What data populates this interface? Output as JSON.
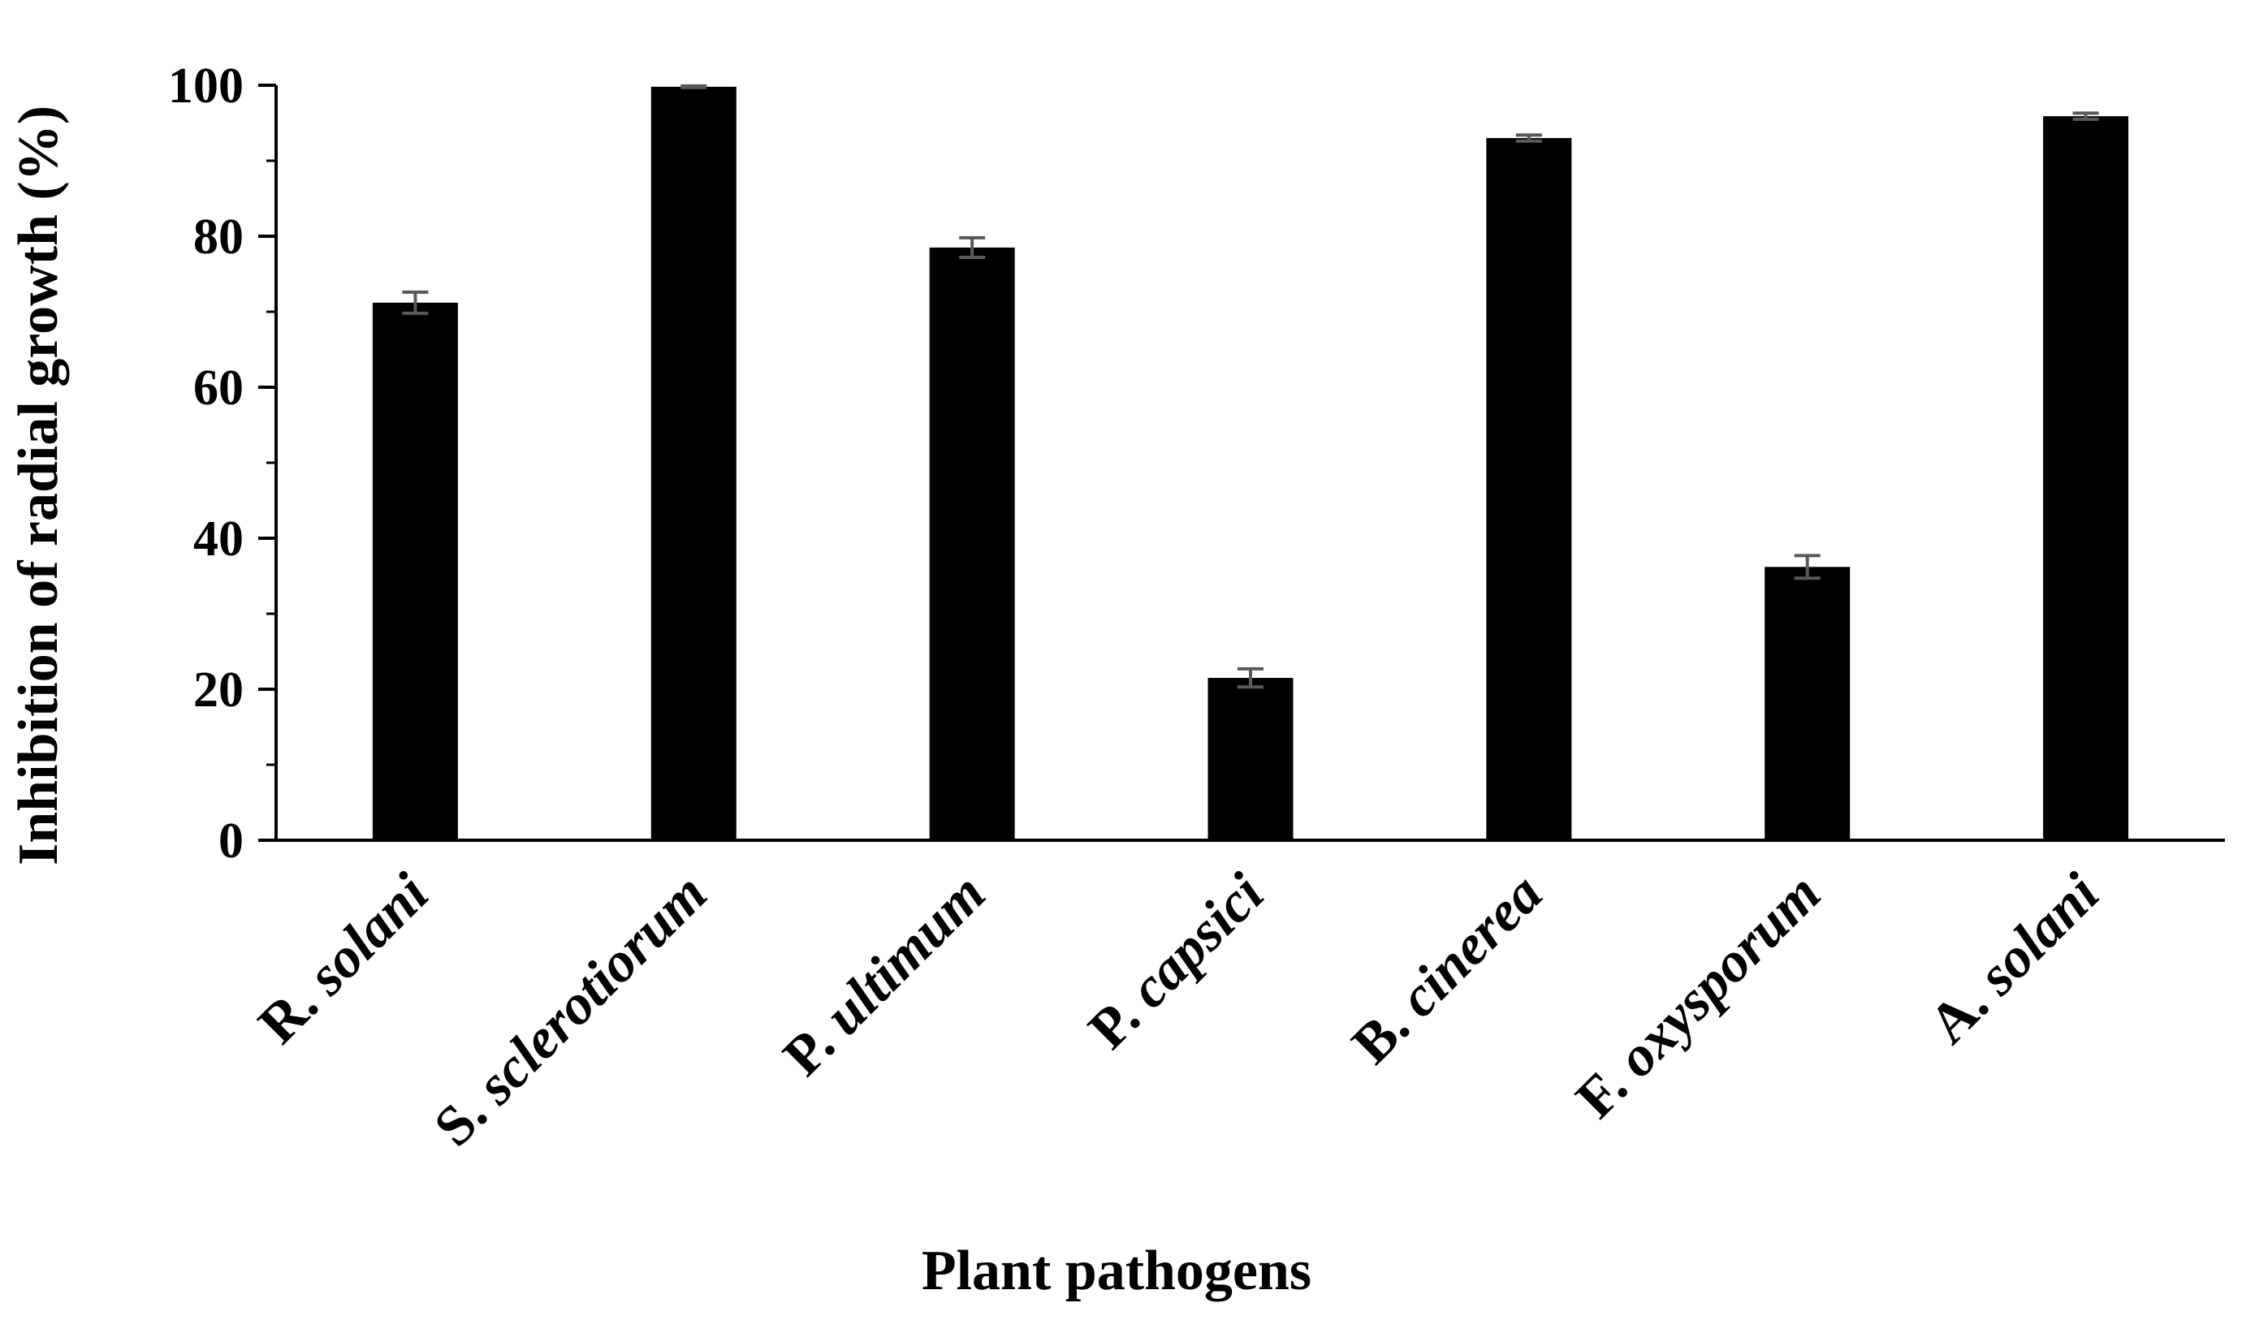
{
  "chart_data": {
    "type": "bar",
    "categories": [
      {
        "genus": "R.",
        "species": "solani"
      },
      {
        "genus": "S.",
        "species": "sclerotiorum"
      },
      {
        "genus": "P.",
        "species": "ultimum"
      },
      {
        "genus": "P.",
        "species": "capsici"
      },
      {
        "genus": "B.",
        "species": "cinerea"
      },
      {
        "genus": "F.",
        "species": "oxysporum"
      },
      {
        "genus": "A.",
        "species": "solani"
      }
    ],
    "values": [
      71.2,
      99.8,
      78.5,
      21.5,
      93.0,
      36.2,
      95.9
    ],
    "errors": [
      1.4,
      0.1,
      1.3,
      1.2,
      0.4,
      1.5,
      0.4
    ],
    "xlabel": "Plant pathogens",
    "ylabel": "Inhibition of radial growth (%)",
    "ylim": [
      0,
      100
    ],
    "yticks": [
      0,
      20,
      40,
      60,
      80,
      100
    ],
    "bar_color": "#000000",
    "error_bar_color": "#595959",
    "grid": false,
    "legend": "none"
  }
}
